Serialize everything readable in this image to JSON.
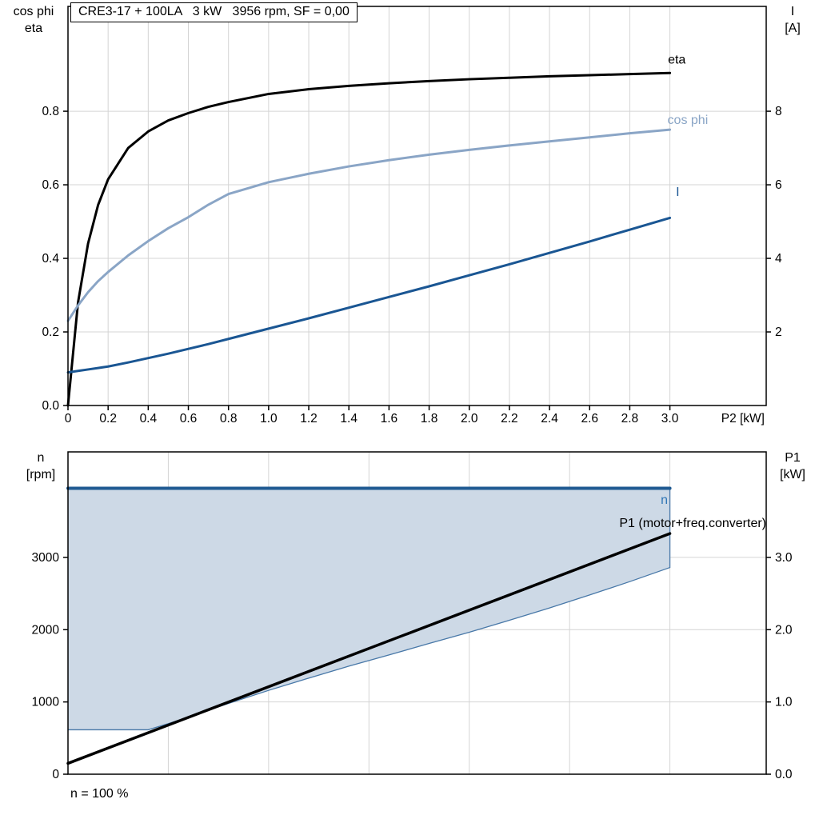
{
  "chart_data": [
    {
      "type": "line",
      "title": "CRE3-17 + 100LA   3 kW   3956 rpm, SF = 0,00",
      "x_axis": {
        "label": "P2 [kW]",
        "range": [
          0,
          3.48
        ],
        "tick_values": [
          0,
          0.2,
          0.4,
          0.6,
          0.8,
          1.0,
          1.2,
          1.4,
          1.6,
          1.8,
          2.0,
          2.2,
          2.4,
          2.6,
          2.8,
          3.0
        ],
        "tick_labels": [
          "0",
          "0.2",
          "0.4",
          "0.6",
          "0.8",
          "1.0",
          "1.2",
          "1.4",
          "1.6",
          "1.8",
          "2.0",
          "2.2",
          "2.4",
          "2.6",
          "2.8",
          "3.0"
        ],
        "grid_values": [
          0.2,
          0.4,
          0.6,
          0.8,
          1.0,
          1.2,
          1.4,
          1.6,
          1.8,
          2.0,
          2.2,
          2.4,
          2.6,
          2.8,
          3.0
        ]
      },
      "left_axis": {
        "title_lines": [
          "cos phi",
          "eta"
        ],
        "range": [
          0,
          1.085
        ],
        "tick_values": [
          0,
          0.2,
          0.4,
          0.6,
          0.8
        ],
        "tick_labels": [
          "0.0",
          "0.2",
          "0.4",
          "0.6",
          "0.8"
        ],
        "grid_values": [
          0.2,
          0.4,
          0.6,
          0.8
        ]
      },
      "right_axis": {
        "title_lines": [
          "I",
          "[A]"
        ],
        "range": [
          0,
          10.85
        ],
        "tick_values": [
          2,
          4,
          6,
          8
        ],
        "tick_labels": [
          "2",
          "4",
          "6",
          "8"
        ]
      },
      "series": [
        {
          "name": "eta",
          "axis": "left",
          "color": "#000000",
          "width": 3,
          "x": [
            0,
            0.05,
            0.1,
            0.15,
            0.2,
            0.3,
            0.4,
            0.5,
            0.6,
            0.7,
            0.8,
            1.0,
            1.2,
            1.4,
            1.6,
            1.8,
            2.0,
            2.2,
            2.4,
            2.6,
            2.8,
            3.0
          ],
          "y": [
            0,
            0.28,
            0.44,
            0.545,
            0.615,
            0.7,
            0.745,
            0.775,
            0.795,
            0.812,
            0.825,
            0.847,
            0.86,
            0.869,
            0.876,
            0.882,
            0.887,
            0.891,
            0.895,
            0.898,
            0.901,
            0.904
          ],
          "label": {
            "text": "eta",
            "x": 2.99,
            "y": 0.93,
            "anchor": "start",
            "color": "#000000"
          }
        },
        {
          "name": "cos phi",
          "axis": "left",
          "color": "#8aa5c6",
          "width": 3,
          "x": [
            0,
            0.05,
            0.1,
            0.15,
            0.2,
            0.3,
            0.4,
            0.5,
            0.6,
            0.7,
            0.8,
            1.0,
            1.2,
            1.4,
            1.6,
            1.8,
            2.0,
            2.2,
            2.4,
            2.6,
            2.8,
            3.0
          ],
          "y": [
            0.23,
            0.272,
            0.308,
            0.338,
            0.363,
            0.408,
            0.447,
            0.482,
            0.512,
            0.546,
            0.575,
            0.607,
            0.63,
            0.65,
            0.667,
            0.682,
            0.695,
            0.707,
            0.718,
            0.729,
            0.74,
            0.75
          ],
          "label": {
            "text": "cos phi",
            "x": 3.19,
            "y": 0.765,
            "anchor": "end",
            "color": "#8aa5c6"
          }
        },
        {
          "name": "I",
          "axis": "right",
          "color": "#1a5693",
          "width": 3,
          "x": [
            0,
            0.05,
            0.1,
            0.15,
            0.2,
            0.3,
            0.4,
            0.5,
            0.6,
            0.7,
            0.8,
            1.0,
            1.2,
            1.4,
            1.6,
            1.8,
            2.0,
            2.2,
            2.4,
            2.6,
            2.8,
            3.0
          ],
          "y": [
            0.9,
            0.94,
            0.98,
            1.02,
            1.06,
            1.17,
            1.29,
            1.41,
            1.54,
            1.67,
            1.81,
            2.09,
            2.37,
            2.66,
            2.95,
            3.24,
            3.54,
            3.84,
            4.15,
            4.46,
            4.78,
            5.1
          ],
          "label": {
            "text": "I",
            "x": 3.03,
            "y": 5.7,
            "anchor": "start",
            "color": "#1a5693"
          }
        }
      ]
    },
    {
      "type": "line",
      "caption": "n = 100 %",
      "x_axis": {
        "label": "",
        "range": [
          0,
          3.48
        ],
        "tick_values": [],
        "tick_labels": [],
        "grid_values": [
          0.5,
          1.0,
          1.5,
          2.0,
          2.5,
          3.0
        ]
      },
      "left_axis": {
        "title_lines": [
          "n",
          "[rpm]"
        ],
        "range": [
          0,
          4460
        ],
        "tick_values": [
          0,
          1000,
          2000,
          3000
        ],
        "tick_labels": [
          "0",
          "1000",
          "2000",
          "3000"
        ],
        "grid_values": [
          1000,
          2000,
          3000
        ]
      },
      "right_axis": {
        "title_lines": [
          "P1",
          "[kW]"
        ],
        "range": [
          0,
          4.46
        ],
        "tick_values": [
          0,
          1.0,
          2.0,
          3.0
        ],
        "tick_labels": [
          "0.0",
          "1.0",
          "2.0",
          "3.0"
        ]
      },
      "region": {
        "axis": "left",
        "fill": "#cdd9e6",
        "outline_color": "#4878a8",
        "lower_x": [
          0,
          0.2,
          0.4,
          0.5,
          0.6,
          0.8,
          1.0,
          1.2,
          1.4,
          1.6,
          1.8,
          2.0,
          2.2,
          2.4,
          2.6,
          2.8,
          3.0
        ],
        "lower_y": [
          615,
          615,
          615,
          700,
          790,
          980,
          1160,
          1330,
          1495,
          1650,
          1810,
          1965,
          2130,
          2300,
          2480,
          2665,
          2860
        ],
        "upper_x": [
          0,
          3.0
        ],
        "upper_y": 3956
      },
      "series": [
        {
          "name": "n",
          "axis": "left",
          "color": "#1f5a92",
          "width": 4,
          "x": [
            0,
            3.0
          ],
          "y": [
            3956,
            3956
          ],
          "label": {
            "text": "n",
            "x": 2.99,
            "y": 3740,
            "anchor": "end",
            "color": "#2e75b5"
          }
        },
        {
          "name": "P1 (motor+freq.converter)",
          "axis": "right",
          "color": "#000000",
          "width": 3.5,
          "x": [
            0,
            3.0
          ],
          "y": [
            0.15,
            3.33
          ],
          "label": {
            "text": "P1 (motor+freq.converter)",
            "x": 3.48,
            "y": 3.42,
            "anchor": "end",
            "color": "#000000"
          }
        }
      ]
    }
  ]
}
